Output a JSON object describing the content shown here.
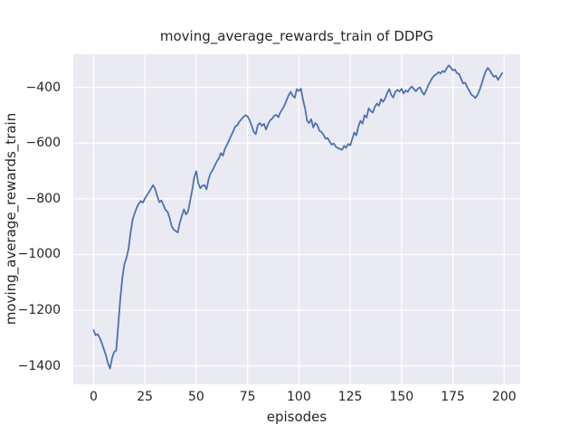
{
  "chart_data": {
    "type": "line",
    "title": "moving_average_rewards_train of DDPG",
    "xlabel": "episodes",
    "ylabel": "moving_average_rewards_train",
    "grid": true,
    "legend": "none",
    "plot_background": "#eaeaf2",
    "grid_color": "#ffffff",
    "text_color": "#262626",
    "xlim": [
      -9.9,
      207.8
    ],
    "ylim": [
      -1466,
      -281
    ],
    "xticks": {
      "values": [
        0,
        25,
        50,
        75,
        100,
        125,
        150,
        175,
        200
      ],
      "labels": [
        "0",
        "25",
        "50",
        "75",
        "100",
        "125",
        "150",
        "175",
        "200"
      ]
    },
    "yticks": {
      "values": [
        -400,
        -600,
        -800,
        -1000,
        -1200,
        -1400
      ],
      "labels": [
        "−400",
        "−600",
        "−800",
        "−1000",
        "−1200",
        "−1400"
      ]
    },
    "series": [
      {
        "name": "moving_average_rewards_train",
        "color": "#4c72b0",
        "line_width": 1.8,
        "points": [
          [
            0,
            -1272
          ],
          [
            1,
            -1290
          ],
          [
            2,
            -1286
          ],
          [
            3,
            -1300
          ],
          [
            4,
            -1318
          ],
          [
            5,
            -1340
          ],
          [
            6,
            -1362
          ],
          [
            7,
            -1390
          ],
          [
            8,
            -1410
          ],
          [
            9,
            -1372
          ],
          [
            10,
            -1350
          ],
          [
            11,
            -1345
          ],
          [
            12,
            -1255
          ],
          [
            13,
            -1160
          ],
          [
            14,
            -1085
          ],
          [
            15,
            -1035
          ],
          [
            16,
            -1012
          ],
          [
            17,
            -980
          ],
          [
            18,
            -922
          ],
          [
            19,
            -875
          ],
          [
            20,
            -852
          ],
          [
            21,
            -832
          ],
          [
            22,
            -818
          ],
          [
            23,
            -808
          ],
          [
            24,
            -814
          ],
          [
            25,
            -799
          ],
          [
            26,
            -787
          ],
          [
            27,
            -776
          ],
          [
            28,
            -763
          ],
          [
            29,
            -751
          ],
          [
            30,
            -765
          ],
          [
            31,
            -790
          ],
          [
            32,
            -812
          ],
          [
            33,
            -806
          ],
          [
            34,
            -822
          ],
          [
            35,
            -840
          ],
          [
            36,
            -846
          ],
          [
            37,
            -868
          ],
          [
            38,
            -898
          ],
          [
            39,
            -910
          ],
          [
            40,
            -916
          ],
          [
            41,
            -921
          ],
          [
            42,
            -886
          ],
          [
            43,
            -861
          ],
          [
            44,
            -838
          ],
          [
            45,
            -856
          ],
          [
            46,
            -846
          ],
          [
            47,
            -808
          ],
          [
            48,
            -770
          ],
          [
            49,
            -723
          ],
          [
            50,
            -701
          ],
          [
            51,
            -745
          ],
          [
            52,
            -762
          ],
          [
            53,
            -753
          ],
          [
            54,
            -751
          ],
          [
            55,
            -766
          ],
          [
            56,
            -730
          ],
          [
            57,
            -708
          ],
          [
            58,
            -697
          ],
          [
            59,
            -681
          ],
          [
            60,
            -666
          ],
          [
            61,
            -655
          ],
          [
            62,
            -636
          ],
          [
            63,
            -645
          ],
          [
            64,
            -620
          ],
          [
            65,
            -606
          ],
          [
            66,
            -590
          ],
          [
            67,
            -573
          ],
          [
            68,
            -558
          ],
          [
            69,
            -540
          ],
          [
            70,
            -536
          ],
          [
            71,
            -523
          ],
          [
            72,
            -514
          ],
          [
            73,
            -506
          ],
          [
            74,
            -500
          ],
          [
            75,
            -504
          ],
          [
            76,
            -518
          ],
          [
            77,
            -537
          ],
          [
            78,
            -560
          ],
          [
            79,
            -568
          ],
          [
            80,
            -535
          ],
          [
            81,
            -528
          ],
          [
            82,
            -538
          ],
          [
            83,
            -531
          ],
          [
            84,
            -551
          ],
          [
            85,
            -532
          ],
          [
            86,
            -518
          ],
          [
            87,
            -512
          ],
          [
            88,
            -502
          ],
          [
            89,
            -499
          ],
          [
            90,
            -507
          ],
          [
            91,
            -489
          ],
          [
            92,
            -478
          ],
          [
            93,
            -464
          ],
          [
            94,
            -446
          ],
          [
            95,
            -428
          ],
          [
            96,
            -416
          ],
          [
            97,
            -430
          ],
          [
            98,
            -437
          ],
          [
            99,
            -406
          ],
          [
            100,
            -413
          ],
          [
            101,
            -404
          ],
          [
            102,
            -445
          ],
          [
            103,
            -475
          ],
          [
            104,
            -520
          ],
          [
            105,
            -528
          ],
          [
            106,
            -514
          ],
          [
            107,
            -544
          ],
          [
            108,
            -528
          ],
          [
            109,
            -535
          ],
          [
            110,
            -556
          ],
          [
            111,
            -560
          ],
          [
            112,
            -570
          ],
          [
            113,
            -584
          ],
          [
            114,
            -582
          ],
          [
            115,
            -595
          ],
          [
            116,
            -606
          ],
          [
            117,
            -601
          ],
          [
            118,
            -613
          ],
          [
            119,
            -618
          ],
          [
            120,
            -621
          ],
          [
            121,
            -624
          ],
          [
            122,
            -610
          ],
          [
            123,
            -617
          ],
          [
            124,
            -603
          ],
          [
            125,
            -608
          ],
          [
            126,
            -585
          ],
          [
            127,
            -562
          ],
          [
            128,
            -572
          ],
          [
            129,
            -540
          ],
          [
            130,
            -520
          ],
          [
            131,
            -530
          ],
          [
            132,
            -500
          ],
          [
            133,
            -508
          ],
          [
            134,
            -475
          ],
          [
            135,
            -485
          ],
          [
            136,
            -490
          ],
          [
            137,
            -470
          ],
          [
            138,
            -458
          ],
          [
            139,
            -466
          ],
          [
            140,
            -442
          ],
          [
            141,
            -452
          ],
          [
            142,
            -440
          ],
          [
            143,
            -420
          ],
          [
            144,
            -406
          ],
          [
            145,
            -428
          ],
          [
            146,
            -436
          ],
          [
            147,
            -416
          ],
          [
            148,
            -409
          ],
          [
            149,
            -415
          ],
          [
            150,
            -405
          ],
          [
            151,
            -422
          ],
          [
            152,
            -411
          ],
          [
            153,
            -416
          ],
          [
            154,
            -404
          ],
          [
            155,
            -397
          ],
          [
            156,
            -406
          ],
          [
            157,
            -414
          ],
          [
            158,
            -404
          ],
          [
            159,
            -400
          ],
          [
            160,
            -416
          ],
          [
            161,
            -426
          ],
          [
            162,
            -411
          ],
          [
            163,
            -393
          ],
          [
            164,
            -379
          ],
          [
            165,
            -366
          ],
          [
            166,
            -357
          ],
          [
            167,
            -353
          ],
          [
            168,
            -345
          ],
          [
            169,
            -350
          ],
          [
            170,
            -341
          ],
          [
            171,
            -345
          ],
          [
            172,
            -331
          ],
          [
            173,
            -321
          ],
          [
            174,
            -329
          ],
          [
            175,
            -339
          ],
          [
            176,
            -336
          ],
          [
            177,
            -349
          ],
          [
            178,
            -352
          ],
          [
            179,
            -369
          ],
          [
            180,
            -386
          ],
          [
            181,
            -383
          ],
          [
            182,
            -399
          ],
          [
            183,
            -412
          ],
          [
            184,
            -426
          ],
          [
            185,
            -431
          ],
          [
            186,
            -438
          ],
          [
            187,
            -427
          ],
          [
            188,
            -410
          ],
          [
            189,
            -388
          ],
          [
            190,
            -364
          ],
          [
            191,
            -342
          ],
          [
            192,
            -330
          ],
          [
            193,
            -339
          ],
          [
            194,
            -352
          ],
          [
            195,
            -362
          ],
          [
            196,
            -358
          ],
          [
            197,
            -373
          ],
          [
            198,
            -361
          ],
          [
            199,
            -349
          ]
        ]
      }
    ]
  }
}
